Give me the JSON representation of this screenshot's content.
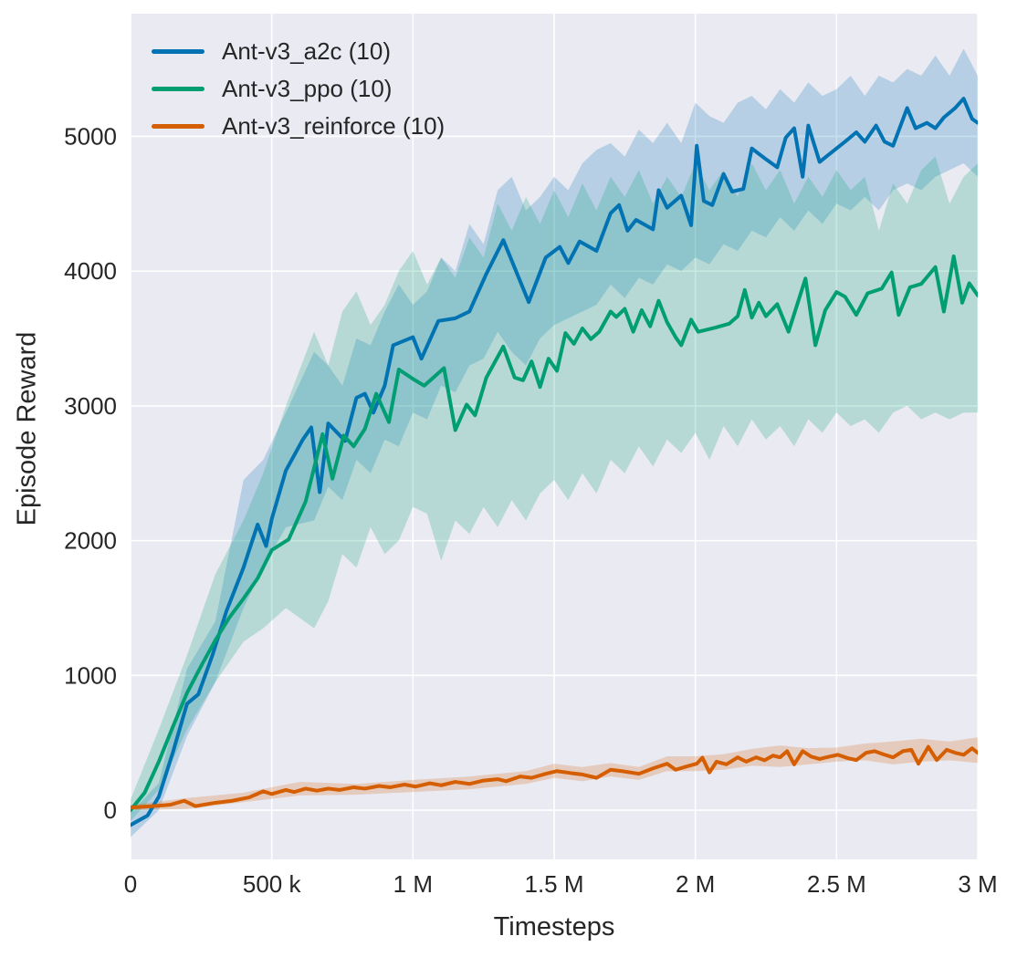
{
  "figure": {
    "background": "#ffffff",
    "plot_background": "#eaeaf2",
    "grid_color": "#ffffff",
    "text_color": "#262626",
    "band_opacity": 0.22
  },
  "chart_data": {
    "type": "line",
    "title": "",
    "xlabel": "Timesteps",
    "ylabel": "Episode Reward",
    "x_unit": "thousands of timesteps",
    "xlim": [
      0,
      3000
    ],
    "ylim": [
      -365,
      5910
    ],
    "grid": true,
    "legend_position": "upper left",
    "x_ticks": [
      {
        "value": 0,
        "label": "0"
      },
      {
        "value": 500,
        "label": "500 k"
      },
      {
        "value": 1000,
        "label": "1 M"
      },
      {
        "value": 1500,
        "label": "1.5 M"
      },
      {
        "value": 2000,
        "label": "2 M"
      },
      {
        "value": 2500,
        "label": "2.5 M"
      },
      {
        "value": 3000,
        "label": "3 M"
      }
    ],
    "y_ticks": [
      {
        "value": 0,
        "label": "0"
      },
      {
        "value": 1000,
        "label": "1000"
      },
      {
        "value": 2000,
        "label": "2000"
      },
      {
        "value": 3000,
        "label": "3000"
      },
      {
        "value": 4000,
        "label": "4000"
      },
      {
        "value": 5000,
        "label": "5000"
      }
    ],
    "series": [
      {
        "label": "Ant-v3_a2c (10)",
        "color": "#0173b2",
        "x": [
          0,
          60,
          100,
          150,
          200,
          240,
          290,
          340,
          400,
          450,
          480,
          500,
          550,
          610,
          640,
          670,
          700,
          760,
          800,
          830,
          860,
          900,
          930,
          1000,
          1030,
          1090,
          1150,
          1200,
          1260,
          1320,
          1410,
          1470,
          1520,
          1550,
          1590,
          1650,
          1700,
          1730,
          1760,
          1790,
          1850,
          1870,
          1900,
          1950,
          1985,
          2005,
          2030,
          2060,
          2100,
          2130,
          2170,
          2200,
          2250,
          2290,
          2320,
          2350,
          2380,
          2400,
          2440,
          2470,
          2530,
          2570,
          2600,
          2640,
          2670,
          2700,
          2750,
          2780,
          2820,
          2850,
          2880,
          2920,
          2950,
          2980,
          3000
        ],
        "y": [
          -110,
          -40,
          100,
          430,
          790,
          860,
          1150,
          1480,
          1800,
          2120,
          1960,
          2160,
          2520,
          2750,
          2840,
          2360,
          2870,
          2740,
          3060,
          3090,
          2950,
          3150,
          3450,
          3510,
          3350,
          3630,
          3650,
          3700,
          3980,
          4230,
          3770,
          4100,
          4180,
          4060,
          4220,
          4150,
          4430,
          4490,
          4300,
          4380,
          4310,
          4600,
          4470,
          4560,
          4340,
          4930,
          4520,
          4490,
          4720,
          4590,
          4610,
          4910,
          4830,
          4770,
          4990,
          5060,
          4700,
          5080,
          4810,
          4860,
          4960,
          5030,
          4960,
          5080,
          4960,
          4930,
          5210,
          5060,
          5100,
          5060,
          5140,
          5210,
          5280,
          5130,
          5100
        ],
        "band": {
          "x": [
            0,
            100,
            200,
            300,
            400,
            470,
            550,
            650,
            700,
            750,
            800,
            850,
            900,
            950,
            1000,
            1050,
            1100,
            1150,
            1200,
            1250,
            1300,
            1350,
            1400,
            1450,
            1500,
            1550,
            1600,
            1650,
            1700,
            1750,
            1800,
            1850,
            1900,
            1950,
            2000,
            2050,
            2100,
            2150,
            2200,
            2250,
            2300,
            2350,
            2400,
            2450,
            2500,
            2550,
            2600,
            2650,
            2700,
            2750,
            2800,
            2850,
            2900,
            2950,
            3000
          ],
          "lo": [
            -200,
            0,
            550,
            950,
            1500,
            1800,
            2100,
            2150,
            2400,
            2300,
            2600,
            2500,
            2750,
            2700,
            2950,
            2900,
            3150,
            3100,
            3300,
            3350,
            3550,
            3400,
            3300,
            3500,
            3600,
            3650,
            3700,
            3750,
            3900,
            3800,
            3950,
            3900,
            4050,
            4000,
            4100,
            4050,
            4200,
            4150,
            4300,
            4250,
            4400,
            4300,
            4450,
            4350,
            4500,
            4450,
            4550,
            4450,
            4600,
            4650,
            4600,
            4700,
            4750,
            4800,
            4700
          ],
          "hi": [
            -20,
            200,
            1050,
            1400,
            2450,
            2600,
            2950,
            3400,
            3300,
            3150,
            3500,
            3450,
            3700,
            3900,
            3750,
            3850,
            4100,
            4000,
            4350,
            4200,
            4600,
            4700,
            4450,
            4550,
            4700,
            4600,
            4800,
            4900,
            4950,
            4850,
            5050,
            4950,
            5100,
            4950,
            5250,
            5150,
            5100,
            5250,
            5300,
            5200,
            5350,
            5250,
            5400,
            5300,
            5350,
            5450,
            5300,
            5450,
            5400,
            5500,
            5450,
            5600,
            5450,
            5650,
            5450
          ]
        }
      },
      {
        "label": "Ant-v3_ppo (10)",
        "color": "#029e73",
        "x": [
          0,
          50,
          100,
          150,
          200,
          250,
          300,
          350,
          400,
          450,
          500,
          560,
          620,
          680,
          715,
          755,
          790,
          830,
          870,
          915,
          950,
          1000,
          1040,
          1110,
          1150,
          1190,
          1220,
          1260,
          1320,
          1360,
          1390,
          1420,
          1450,
          1480,
          1510,
          1540,
          1570,
          1600,
          1630,
          1660,
          1700,
          1720,
          1750,
          1780,
          1810,
          1840,
          1870,
          1900,
          1930,
          1950,
          1985,
          2010,
          2070,
          2120,
          2150,
          2175,
          2200,
          2225,
          2250,
          2290,
          2330,
          2390,
          2425,
          2460,
          2500,
          2530,
          2570,
          2610,
          2660,
          2695,
          2720,
          2760,
          2800,
          2850,
          2880,
          2915,
          2945,
          2970,
          3000
        ],
        "y": [
          0,
          130,
          360,
          620,
          870,
          1070,
          1260,
          1430,
          1570,
          1720,
          1930,
          2010,
          2290,
          2790,
          2460,
          2780,
          2700,
          2830,
          3090,
          2880,
          3270,
          3200,
          3150,
          3280,
          2820,
          3010,
          2930,
          3210,
          3440,
          3210,
          3190,
          3330,
          3140,
          3350,
          3260,
          3540,
          3460,
          3575,
          3495,
          3550,
          3700,
          3660,
          3720,
          3550,
          3710,
          3590,
          3780,
          3620,
          3510,
          3450,
          3640,
          3550,
          3580,
          3610,
          3665,
          3860,
          3655,
          3765,
          3665,
          3755,
          3550,
          3945,
          3450,
          3710,
          3845,
          3810,
          3675,
          3835,
          3870,
          3990,
          3675,
          3880,
          3905,
          4030,
          3700,
          4110,
          3765,
          3910,
          3820
        ],
        "band": {
          "x": [
            0,
            100,
            200,
            300,
            400,
            470,
            550,
            650,
            700,
            750,
            800,
            850,
            900,
            950,
            1000,
            1050,
            1100,
            1150,
            1200,
            1250,
            1300,
            1350,
            1400,
            1450,
            1500,
            1550,
            1600,
            1650,
            1700,
            1750,
            1800,
            1850,
            1900,
            1950,
            2000,
            2050,
            2100,
            2150,
            2200,
            2250,
            2300,
            2350,
            2400,
            2450,
            2500,
            2550,
            2600,
            2650,
            2700,
            2750,
            2800,
            2850,
            2900,
            2950,
            3000
          ],
          "lo": [
            -80,
            150,
            600,
            950,
            1250,
            1350,
            1500,
            1350,
            1550,
            1900,
            1800,
            2100,
            1900,
            2000,
            2250,
            2200,
            1850,
            2150,
            2050,
            2250,
            2100,
            2300,
            2150,
            2350,
            2450,
            2300,
            2500,
            2350,
            2600,
            2500,
            2700,
            2550,
            2750,
            2650,
            2800,
            2600,
            2850,
            2700,
            2900,
            2750,
            2850,
            2700,
            2900,
            2800,
            2950,
            2850,
            2900,
            2800,
            2950,
            3000,
            2900,
            2950,
            2900,
            2950,
            2950
          ],
          "hi": [
            80,
            600,
            1150,
            1750,
            2150,
            2500,
            3000,
            3550,
            3300,
            3700,
            3850,
            3600,
            3750,
            4000,
            4150,
            3900,
            4100,
            3950,
            4250,
            4100,
            4500,
            4300,
            4550,
            4350,
            4600,
            4400,
            4650,
            4450,
            4700,
            4550,
            4750,
            4500,
            4700,
            4550,
            4800,
            4600,
            4750,
            4550,
            4800,
            4600,
            4750,
            4500,
            4700,
            4550,
            4750,
            4600,
            4700,
            4300,
            4650,
            4500,
            4750,
            4850,
            4500,
            4700,
            4800
          ]
        }
      },
      {
        "label": "Ant-v3_reinforce (10)",
        "color": "#d55e00",
        "x": [
          0,
          80,
          140,
          190,
          230,
          300,
          360,
          420,
          470,
          500,
          550,
          580,
          620,
          660,
          700,
          740,
          790,
          830,
          880,
          920,
          970,
          1010,
          1060,
          1100,
          1150,
          1200,
          1250,
          1300,
          1330,
          1380,
          1420,
          1470,
          1510,
          1560,
          1600,
          1650,
          1700,
          1740,
          1800,
          1850,
          1900,
          1930,
          1970,
          2005,
          2025,
          2050,
          2075,
          2110,
          2150,
          2180,
          2215,
          2245,
          2275,
          2300,
          2325,
          2350,
          2380,
          2410,
          2440,
          2475,
          2505,
          2540,
          2570,
          2605,
          2635,
          2665,
          2700,
          2735,
          2765,
          2790,
          2825,
          2855,
          2890,
          2920,
          2950,
          2980,
          3000
        ],
        "y": [
          20,
          30,
          40,
          70,
          30,
          55,
          70,
          95,
          140,
          120,
          150,
          135,
          160,
          145,
          160,
          150,
          170,
          160,
          180,
          170,
          190,
          175,
          200,
          185,
          210,
          195,
          220,
          230,
          215,
          250,
          240,
          270,
          290,
          275,
          265,
          240,
          300,
          290,
          270,
          310,
          345,
          300,
          325,
          345,
          390,
          280,
          360,
          340,
          392,
          360,
          392,
          370,
          405,
          392,
          438,
          340,
          438,
          398,
          380,
          398,
          411,
          386,
          372,
          426,
          438,
          415,
          392,
          438,
          448,
          345,
          470,
          372,
          448,
          426,
          411,
          459,
          426
        ],
        "band": {
          "x": [
            0,
            200,
            400,
            600,
            800,
            1000,
            1200,
            1400,
            1500,
            1600,
            1700,
            1800,
            1900,
            2000,
            2100,
            2200,
            2300,
            2400,
            2500,
            2600,
            2700,
            2800,
            2900,
            3000
          ],
          "lo": [
            0,
            10,
            60,
            110,
            115,
            135,
            155,
            195,
            240,
            215,
            250,
            225,
            290,
            290,
            300,
            330,
            320,
            340,
            360,
            370,
            340,
            360,
            370,
            350
          ],
          "hi": [
            40,
            90,
            130,
            210,
            195,
            225,
            250,
            290,
            345,
            320,
            350,
            320,
            400,
            400,
            415,
            455,
            480,
            460,
            465,
            495,
            510,
            530,
            510,
            540
          ]
        }
      }
    ]
  }
}
